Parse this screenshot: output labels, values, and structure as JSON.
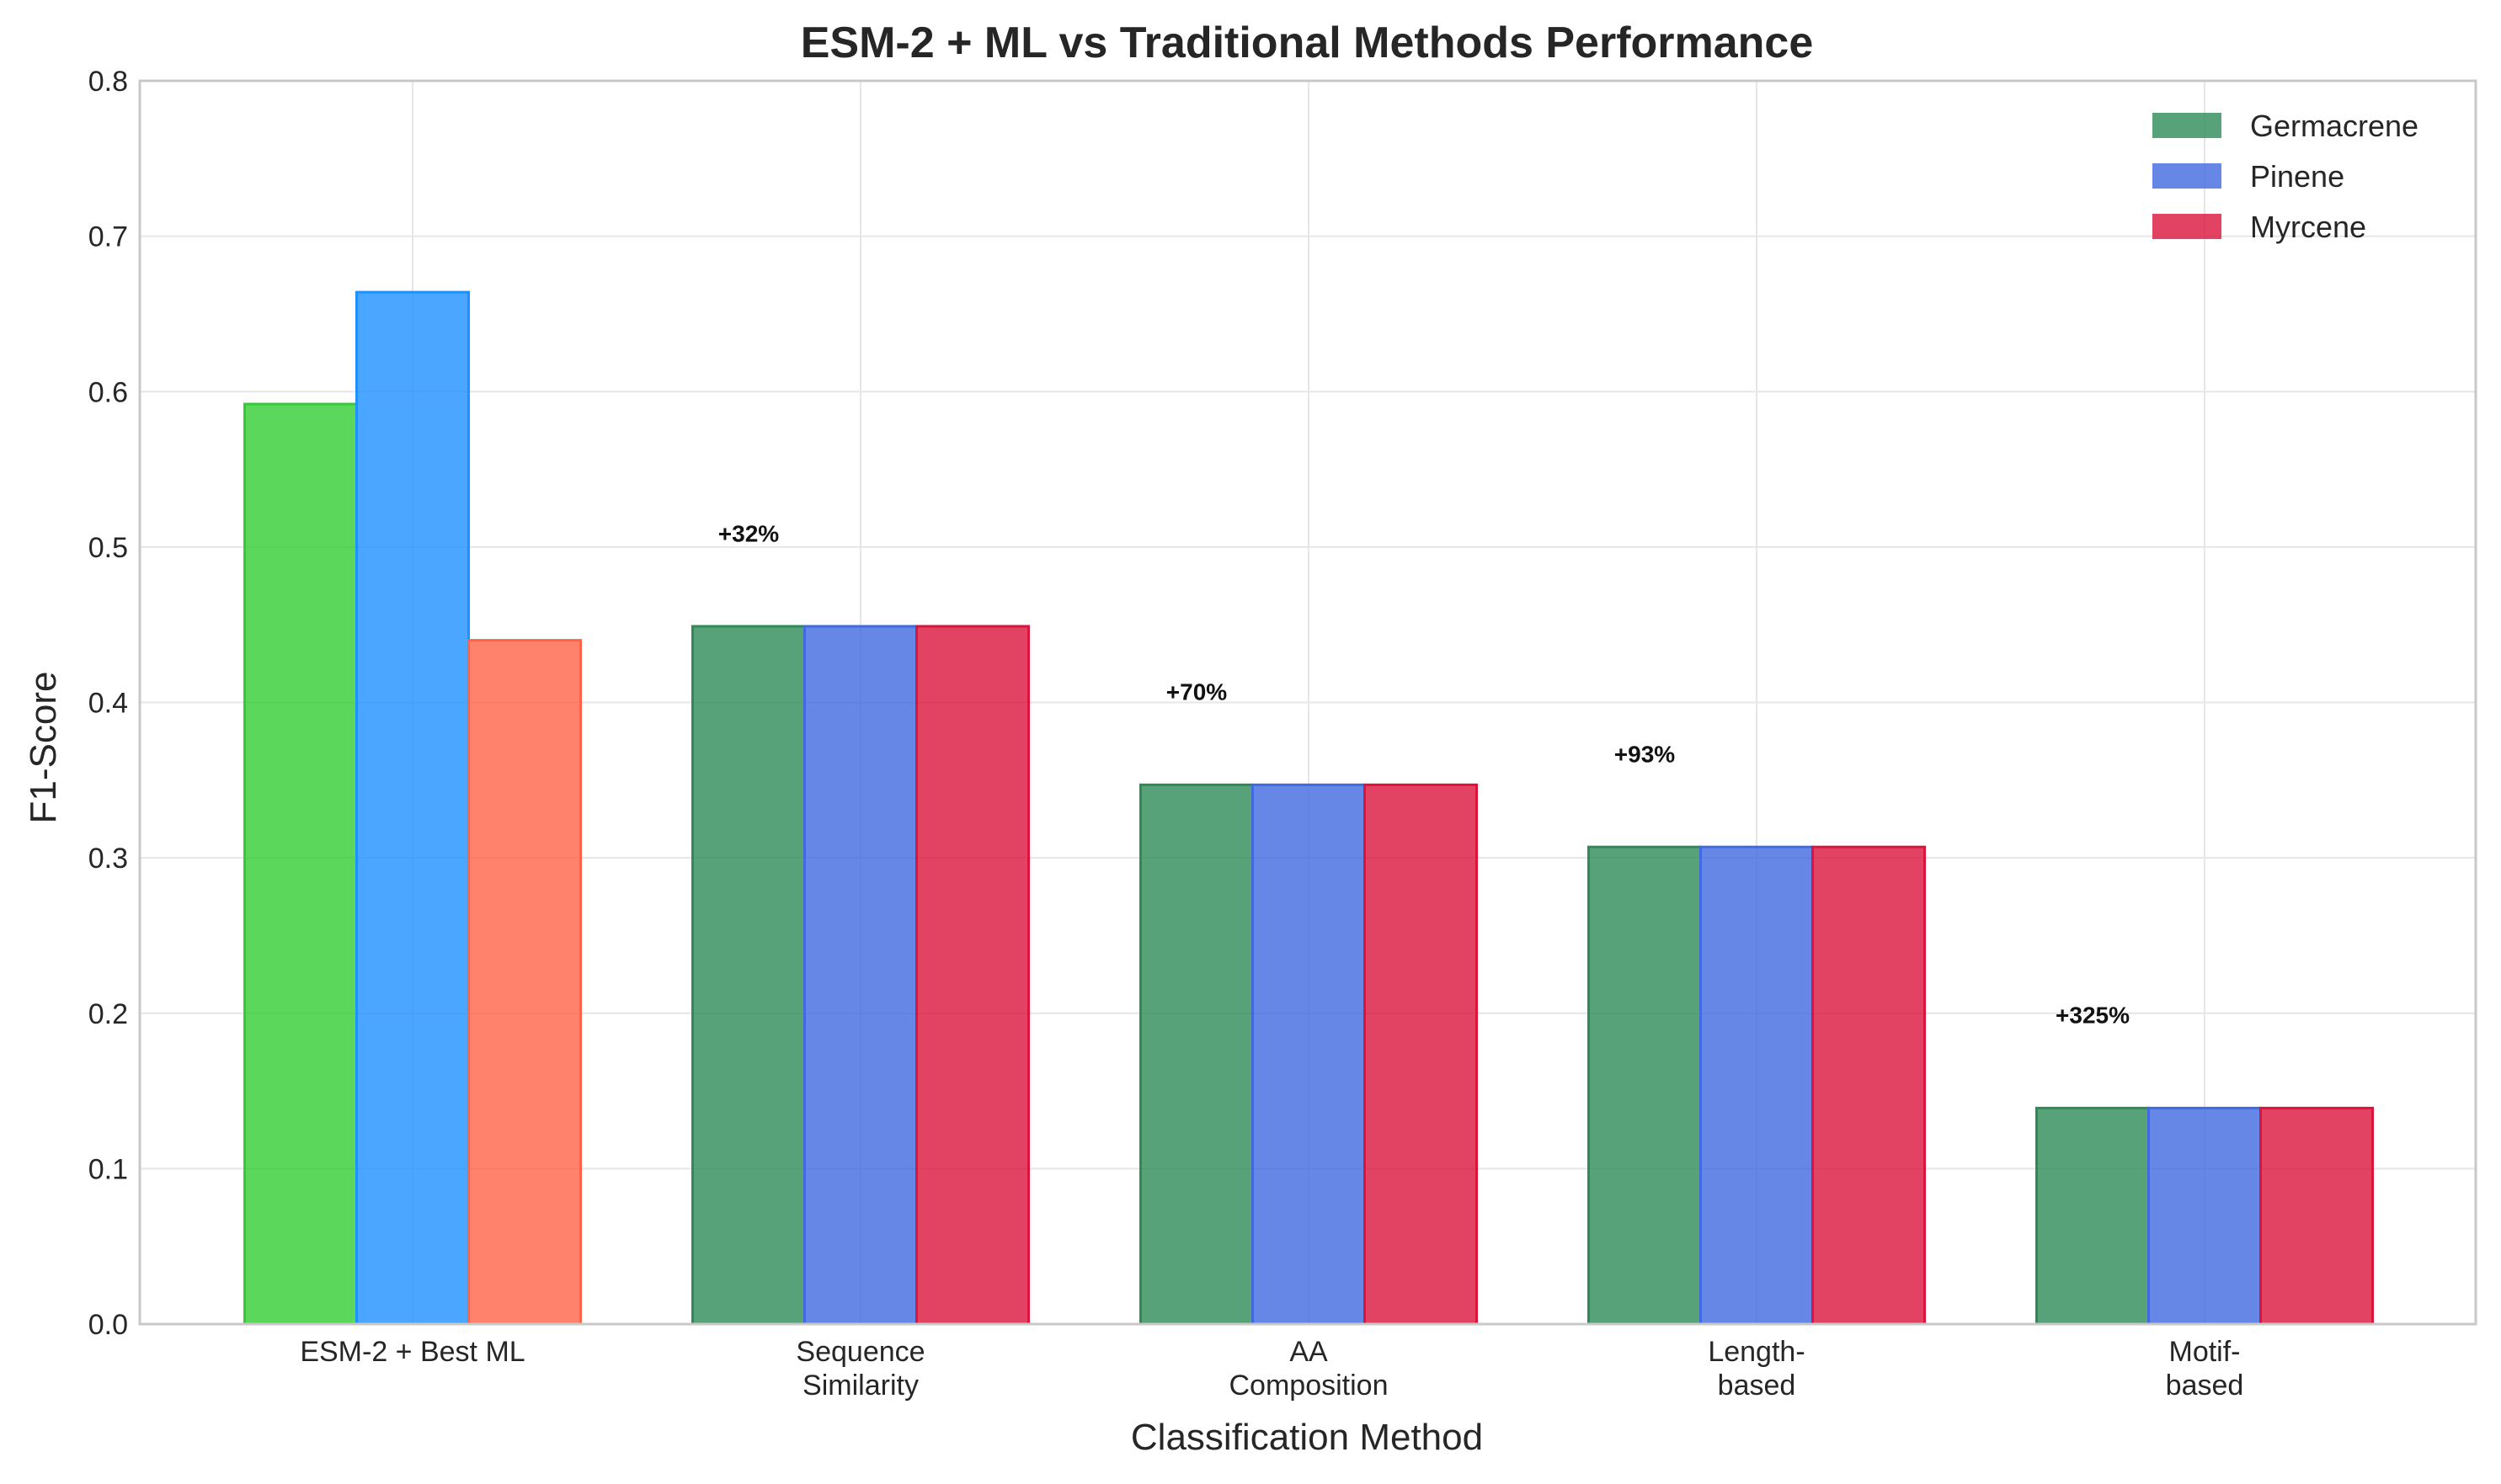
{
  "chart_data": {
    "type": "bar",
    "title": "ESM-2 + ML vs Traditional Methods Performance",
    "xlabel": "Classification Method",
    "ylabel": "F1-Score",
    "ylim": [
      0,
      0.8
    ],
    "yticks": [
      "0.0",
      "0.1",
      "0.2",
      "0.3",
      "0.4",
      "0.5",
      "0.6",
      "0.7",
      "0.8"
    ],
    "grid": true,
    "legend_position": "top-right",
    "categories": [
      [
        "ESM-2 + Best ML"
      ],
      [
        "Sequence",
        "Similarity"
      ],
      [
        "AA",
        "Composition"
      ],
      [
        "Length-",
        "based"
      ],
      [
        "Motif-",
        "based"
      ]
    ],
    "series": [
      {
        "name": "Germacrene",
        "color": "#2e8b57",
        "values": [
          0.592,
          0.449,
          0.347,
          0.307,
          0.139
        ]
      },
      {
        "name": "Pinene",
        "color": "#4169e1",
        "values": [
          0.664,
          0.449,
          0.347,
          0.307,
          0.139
        ]
      },
      {
        "name": "Myrcene",
        "color": "#dc143c",
        "values": [
          0.44,
          0.449,
          0.347,
          0.307,
          0.139
        ]
      }
    ],
    "first_group_colors": [
      "#32cd32",
      "#1e90ff",
      "#ff6347"
    ],
    "annotations": [
      {
        "category_index": 1,
        "text": "+32%",
        "y": 0.509
      },
      {
        "category_index": 2,
        "text": "+70%",
        "y": 0.407
      },
      {
        "category_index": 3,
        "text": "+93%",
        "y": 0.367
      },
      {
        "category_index": 4,
        "text": "+325%",
        "y": 0.199
      }
    ]
  }
}
